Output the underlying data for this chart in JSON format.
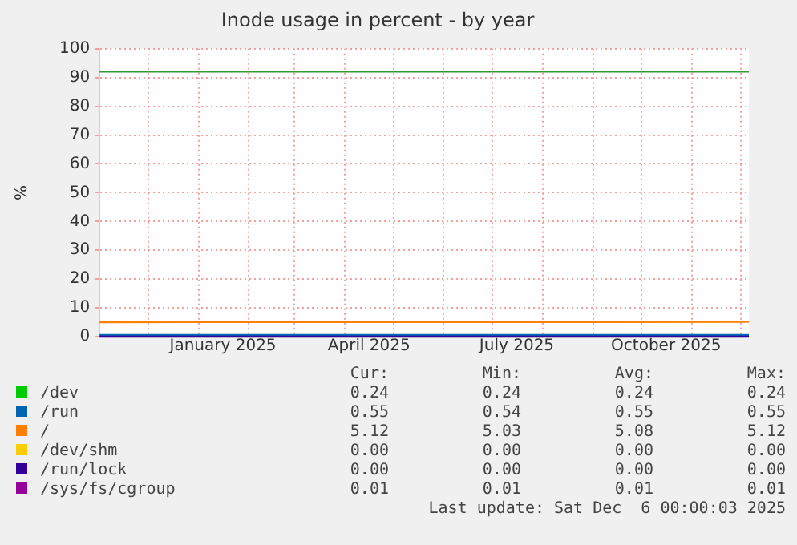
{
  "chart_data": {
    "type": "line",
    "title": "Inode usage in percent - by year",
    "ylabel": "%",
    "xlim": [
      "2024-11-01",
      "2025-12-06"
    ],
    "xticks": [
      {
        "value": "2024-11-01",
        "label": null
      },
      {
        "value": "2024-12-01",
        "label": null
      },
      {
        "value": "2025-01-01",
        "label": null
      },
      {
        "value": "2025-01-16",
        "label": "January 2025"
      },
      {
        "value": "2025-02-01",
        "label": null
      },
      {
        "value": "2025-03-01",
        "label": null
      },
      {
        "value": "2025-04-01",
        "label": null
      },
      {
        "value": "2025-04-16",
        "label": "April 2025"
      },
      {
        "value": "2025-05-01",
        "label": null
      },
      {
        "value": "2025-06-01",
        "label": null
      },
      {
        "value": "2025-07-01",
        "label": null
      },
      {
        "value": "2025-07-16",
        "label": "July 2025"
      },
      {
        "value": "2025-08-01",
        "label": null
      },
      {
        "value": "2025-09-01",
        "label": null
      },
      {
        "value": "2025-10-01",
        "label": null
      },
      {
        "value": "2025-10-16",
        "label": "October 2025"
      },
      {
        "value": "2025-11-01",
        "label": null
      },
      {
        "value": "2025-12-01",
        "label": null
      }
    ],
    "ylim": [
      0,
      100
    ],
    "yticks": [
      0,
      10,
      20,
      30,
      40,
      50,
      60,
      70,
      80,
      90,
      100
    ],
    "grid": true,
    "legend": "bottom",
    "marker": "none",
    "line_style": "solid",
    "x": [
      "2024-11-01",
      "2025-12-06"
    ],
    "series": [
      {
        "name": "/dev",
        "color": "#00cc00",
        "values": [
          null,
          null
        ]
      },
      {
        "name": "/run",
        "color": "#0066b3",
        "values": [
          0.54,
          0.55
        ]
      },
      {
        "name": "/",
        "color": "#ff8000",
        "values": [
          5.03,
          5.12
        ]
      },
      {
        "name": "/dev/shm",
        "color": "#ffcc00",
        "values": [
          null,
          null
        ]
      },
      {
        "name": "/run/lock",
        "color": "#330099",
        "values": [
          0.0,
          0.0
        ]
      },
      {
        "name": "/sys/fs/cgroup",
        "color": "#990099",
        "values": [
          null,
          null
        ]
      }
    ],
    "ref_lines": [
      {
        "axis": "y",
        "value": 92,
        "label": null,
        "color": "#339933"
      }
    ],
    "annotations": [
      "Cur:",
      "Min:",
      "Avg:",
      "Max:",
      "0.24",
      "0.24",
      "0.24",
      "0.24",
      "0.55",
      "0.54",
      "0.55",
      "0.55",
      "5.12",
      "5.03",
      "5.08",
      "5.12",
      "0.00",
      "0.00",
      "0.00",
      "0.00",
      "0.00",
      "0.00",
      "0.00",
      "0.00",
      "0.01",
      "0.01",
      "0.01",
      "0.01",
      "Last update: Sat Dec  6 00:00:03 2025"
    ]
  }
}
